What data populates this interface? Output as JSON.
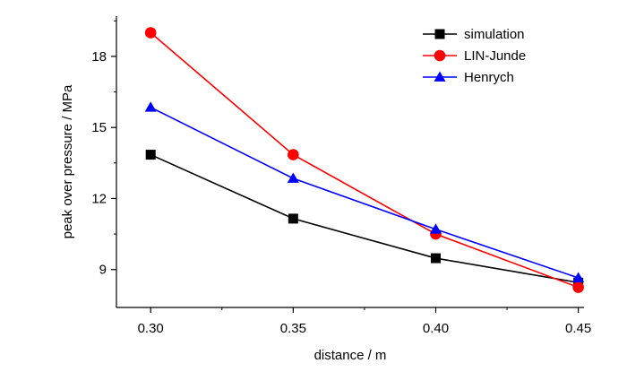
{
  "chart_data": {
    "type": "line",
    "xlabel": "distance / m",
    "ylabel": "peak over pressure / MPa",
    "xlim": [
      0.288,
      0.452
    ],
    "ylim": [
      7.4,
      19.7
    ],
    "x_ticks": [
      0.3,
      0.35,
      0.4,
      0.45
    ],
    "x_tick_labels": [
      "0.30",
      "0.35",
      "0.40",
      "0.45"
    ],
    "y_ticks": [
      9,
      12,
      15,
      18
    ],
    "y_tick_labels": [
      "9",
      "12",
      "15",
      "18"
    ],
    "legend_position": "top-right",
    "x": [
      0.3,
      0.35,
      0.4,
      0.45
    ],
    "series": [
      {
        "name": "simulation",
        "values": [
          13.85,
          11.15,
          9.48,
          8.45
        ],
        "color": "#000000",
        "marker": "square"
      },
      {
        "name": "LIN-Junde",
        "values": [
          19.0,
          13.85,
          10.5,
          8.25
        ],
        "color": "#ff0000",
        "marker": "circle"
      },
      {
        "name": "Henrych",
        "values": [
          15.85,
          12.85,
          10.7,
          8.65
        ],
        "color": "#0000ff",
        "marker": "triangle"
      }
    ]
  }
}
